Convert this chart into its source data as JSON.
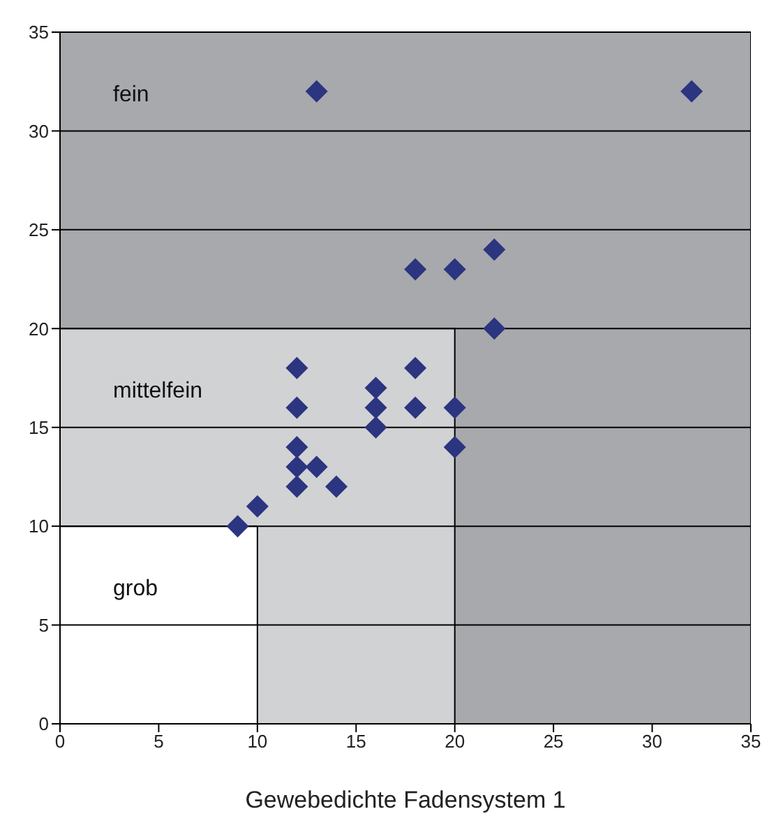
{
  "chart_data": {
    "type": "scatter",
    "xlabel": "Gewebedichte Fadensystem 1",
    "x": [
      13,
      32,
      18,
      20,
      22,
      22,
      12,
      12,
      16,
      16,
      16,
      18,
      18,
      20,
      20,
      12,
      12,
      12,
      13,
      14,
      10,
      9
    ],
    "values": [
      32,
      32,
      23,
      23,
      24,
      20,
      18,
      16,
      17,
      16,
      15,
      18,
      16,
      16,
      14,
      14,
      13,
      12,
      13,
      12,
      11,
      10
    ],
    "color": "#2b3580",
    "marker": "diamond",
    "xlim": [
      0,
      35
    ],
    "ylim": [
      0,
      35
    ],
    "xticks": [
      0,
      5,
      10,
      15,
      20,
      25,
      30,
      35
    ],
    "yticks": [
      0,
      5,
      10,
      15,
      20,
      25,
      30,
      35
    ],
    "grid": "y",
    "legend": false,
    "bands": [
      {
        "axis": "x",
        "from": 0,
        "to": 35,
        "label": "fein",
        "color": "#a7a9ac"
      },
      {
        "axis": "x",
        "from": 0,
        "to": 20,
        "label": "mittelfein",
        "color": "#d1d2d4"
      },
      {
        "axis": "x",
        "from": 0,
        "to": 10,
        "label": "grob",
        "color": "#ffffff"
      }
    ]
  }
}
